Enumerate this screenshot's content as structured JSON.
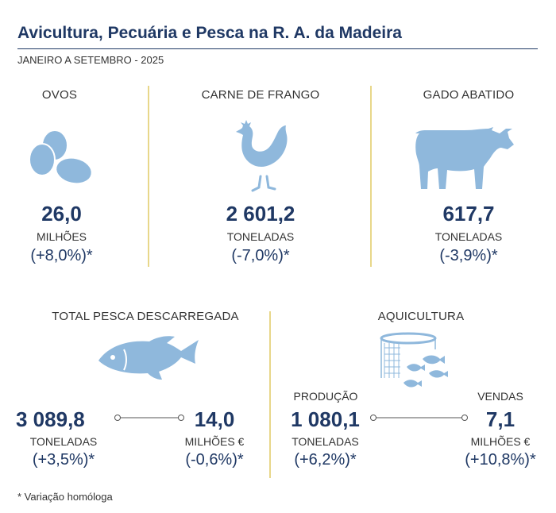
{
  "header": {
    "title": "Avicultura, Pecuária e Pesca na R. A. da Madeira",
    "subtitle": "JANEIRO A SETEMBRO - 2025"
  },
  "colors": {
    "icon": "#8fb8dc",
    "text": "#1f3864",
    "divider": "#e8d78a"
  },
  "panels": {
    "ovos": {
      "label": "OVOS",
      "icon": "eggs-icon",
      "value": "26,0",
      "unit": "MILHÕES",
      "variation": "(+8,0%)*"
    },
    "frango": {
      "label": "CARNE DE FRANGO",
      "icon": "chicken-icon",
      "value": "2 601,2",
      "unit": "TONELADAS",
      "variation": "(-7,0%)*"
    },
    "gado": {
      "label": "GADO ABATIDO",
      "icon": "cow-icon",
      "value": "617,7",
      "unit": "TONELADAS",
      "variation": "(-3,9%)*"
    },
    "pesca": {
      "label": "TOTAL PESCA DESCARREGADA",
      "icon": "fish-icon",
      "left": {
        "value": "3 089,8",
        "unit": "TONELADAS",
        "variation": "(+3,5%)*"
      },
      "right": {
        "value": "14,0",
        "unit": "MILHÕES €",
        "variation": "(-0,6%)*"
      }
    },
    "aquicultura": {
      "label": "AQUICULTURA",
      "icon": "fish-cage-icon",
      "left": {
        "sublabel": "PRODUÇÃO",
        "value": "1 080,1",
        "unit": "TONELADAS",
        "variation": "(+6,2%)*"
      },
      "right": {
        "sublabel": "VENDAS",
        "value": "7,1",
        "unit": "MILHÕES €",
        "variation": "(+10,8%)*"
      }
    }
  },
  "footnote": "* Variação homóloga"
}
